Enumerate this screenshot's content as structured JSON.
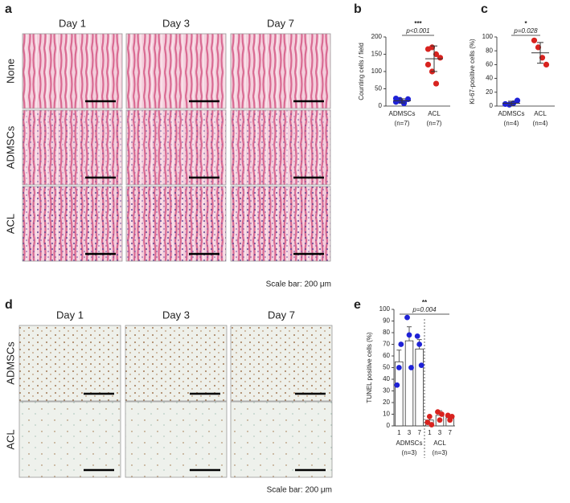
{
  "panel_a": {
    "label": "a",
    "columns": [
      "Day 1",
      "Day 3",
      "Day 7"
    ],
    "rows": [
      "None",
      "ADMSCs",
      "ACL"
    ],
    "scale_bar": "Scale bar: 200 μm"
  },
  "panel_d": {
    "label": "d",
    "columns": [
      "Day 1",
      "Day 3",
      "Day 7"
    ],
    "rows": [
      "ADMSCs",
      "ACL"
    ],
    "scale_bar": "Scale bar: 200 μm"
  },
  "chart_data": [
    {
      "type": "scatter",
      "label": "b",
      "ylabel": "Counting cells / field",
      "ylim": [
        0,
        200
      ],
      "yticks": [
        0,
        50,
        100,
        150,
        200
      ],
      "annotation": "***",
      "p_label": "p<0.001",
      "series": [
        {
          "name": "ADMSCs",
          "note": "(n=7)",
          "color": "#1f22d6",
          "values": [
            22,
            15,
            8,
            20,
            12,
            18,
            10
          ],
          "mean": 15,
          "sd": 6
        },
        {
          "name": "ACL",
          "note": "(n=7)",
          "color": "#d8231f",
          "values": [
            165,
            170,
            150,
            140,
            120,
            100,
            65
          ],
          "mean": 137,
          "sd": 37
        }
      ]
    },
    {
      "type": "scatter",
      "label": "c",
      "ylabel": "Ki-67-positive cells (%)",
      "ylim": [
        0,
        100
      ],
      "yticks": [
        0,
        20,
        40,
        60,
        80,
        100
      ],
      "annotation": "*",
      "p_label": "p=0.028",
      "series": [
        {
          "name": "ADMSCs",
          "note": "(n=4)",
          "color": "#1f22d6",
          "values": [
            3,
            2,
            4,
            8
          ],
          "mean": 4,
          "sd": 3
        },
        {
          "name": "ACL",
          "note": "(n=4)",
          "color": "#d8231f",
          "values": [
            95,
            85,
            70,
            60
          ],
          "mean": 77,
          "sd": 15
        }
      ]
    },
    {
      "type": "bar",
      "label": "e",
      "ylabel": "TUNEL positive cells (%)",
      "ylim": [
        0,
        100
      ],
      "yticks": [
        0,
        10,
        20,
        30,
        40,
        50,
        60,
        70,
        80,
        90,
        100
      ],
      "annotation": "**",
      "p_label": "p=0.004",
      "categories": [
        "1",
        "3",
        "7"
      ],
      "series": [
        {
          "name": "ADMSCs",
          "note": "(n=3)",
          "color": "#1f22d6",
          "values": [
            55,
            73,
            66
          ],
          "errors": [
            10,
            12,
            8
          ],
          "points": [
            [
              35,
              50,
              70
            ],
            [
              93,
              78,
              50
            ],
            [
              77,
              70,
              52
            ]
          ]
        },
        {
          "name": "ACL",
          "note": "(n=3)",
          "color": "#d8231f",
          "values": [
            5,
            9,
            7
          ],
          "errors": [
            3,
            4,
            2
          ],
          "points": [
            [
              3,
              8,
              1
            ],
            [
              12,
              5,
              10
            ],
            [
              9,
              5,
              8
            ]
          ]
        }
      ]
    }
  ]
}
